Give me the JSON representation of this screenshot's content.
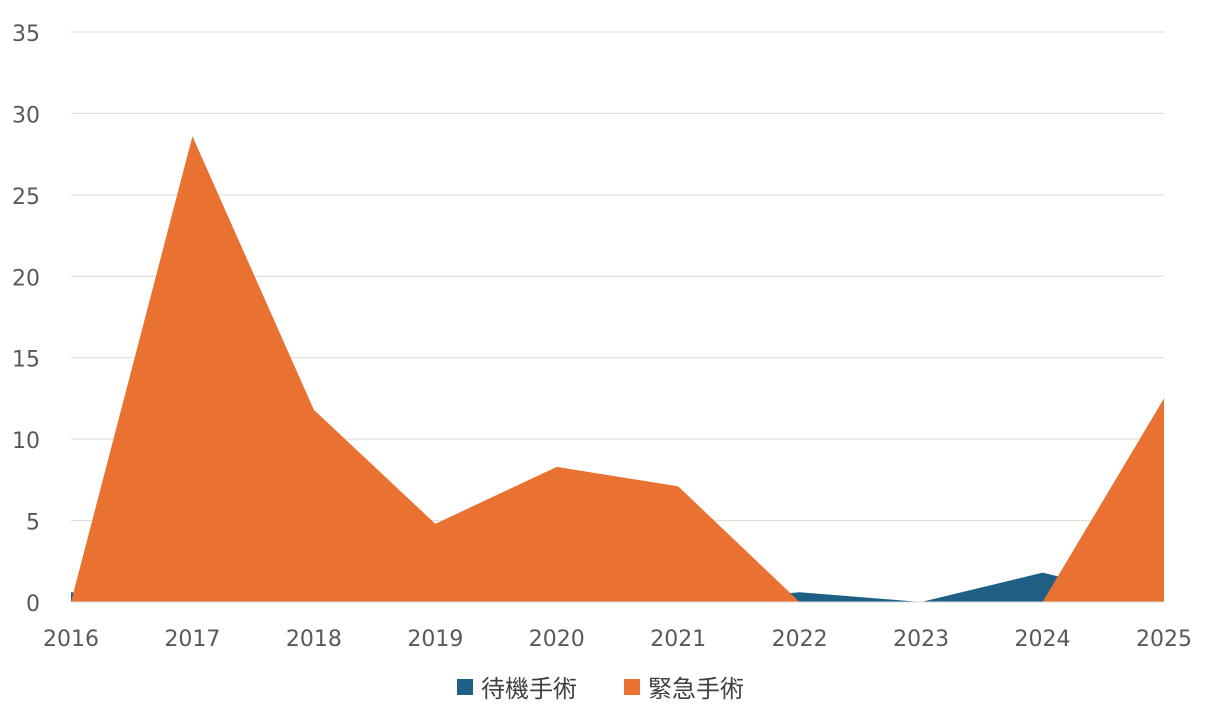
{
  "chart_data": {
    "type": "area",
    "title": "",
    "xlabel": "",
    "ylabel": "",
    "categories": [
      "2016",
      "2017",
      "2018",
      "2019",
      "2020",
      "2021",
      "2022",
      "2023",
      "2024",
      "2025"
    ],
    "ylim": [
      0,
      35
    ],
    "yticks": [
      0,
      5,
      10,
      15,
      20,
      25,
      30,
      35
    ],
    "grid": true,
    "legend_position": "bottom",
    "series": [
      {
        "name": "待機手術",
        "color": "#1f5f85",
        "values": [
          0.6,
          0.0,
          0.0,
          0.0,
          0.0,
          0.0,
          0.6,
          0.0,
          1.8,
          0.0
        ]
      },
      {
        "name": "緊急手術",
        "color": "#e97132",
        "values": [
          0.0,
          28.6,
          11.8,
          4.8,
          8.3,
          7.1,
          0.0,
          0.0,
          0.0,
          12.5
        ]
      }
    ]
  }
}
